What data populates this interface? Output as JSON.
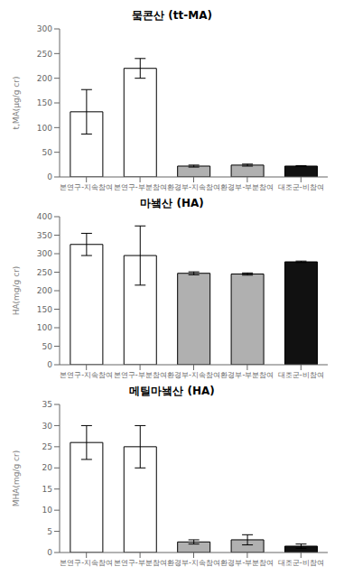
{
  "chart_data": [
    {
      "type": "bar",
      "title": "뭌콘산 (tt-MA)",
      "ylabel": "t,MA(μg/g cr)",
      "categories": [
        "본연구-지속참여",
        "본연구-부분참여",
        "환경부-지속참여",
        "환경부-부분참여",
        "대조군-비참여"
      ],
      "values": [
        132,
        220,
        22,
        24,
        22
      ],
      "errors": [
        45,
        20,
        2,
        2,
        1
      ],
      "colors": [
        "white",
        "white",
        "#b0b0b0",
        "#b0b0b0",
        "#111111"
      ],
      "ylim": [
        0,
        300
      ],
      "yticks": [
        0,
        50,
        100,
        150,
        200,
        250,
        300
      ]
    },
    {
      "type": "bar",
      "title": "마뇈산 (HA)",
      "ylabel": "HA(mg/g cr)",
      "categories": [
        "본연구-지속참여",
        "본연구-부분참여",
        "환경부-지속참여",
        "환경부-부분참여",
        "대조군-비참여"
      ],
      "values": [
        325,
        295,
        247,
        245,
        278
      ],
      "errors": [
        30,
        80,
        4,
        3,
        2
      ],
      "colors": [
        "white",
        "white",
        "#b0b0b0",
        "#b0b0b0",
        "#111111"
      ],
      "ylim": [
        0,
        400
      ],
      "yticks": [
        0,
        50,
        100,
        150,
        200,
        250,
        300,
        350,
        400
      ]
    },
    {
      "type": "bar",
      "title": "메틸마뇈산 (HA)",
      "ylabel": "MHA(mg/g cr)",
      "categories": [
        "본연구-지속참여",
        "본연구-부분참여",
        "환경부-지속참여",
        "환경부-부분참여",
        "대조군-비참여"
      ],
      "values": [
        26,
        25,
        2.5,
        3.0,
        1.5
      ],
      "errors": [
        4.0,
        5.0,
        0.5,
        1.2,
        0.5
      ],
      "colors": [
        "white",
        "white",
        "#b0b0b0",
        "#b0b0b0",
        "#111111"
      ],
      "ylim": [
        0,
        35
      ],
      "yticks": [
        0,
        5,
        10,
        15,
        20,
        25,
        30,
        35
      ]
    }
  ]
}
